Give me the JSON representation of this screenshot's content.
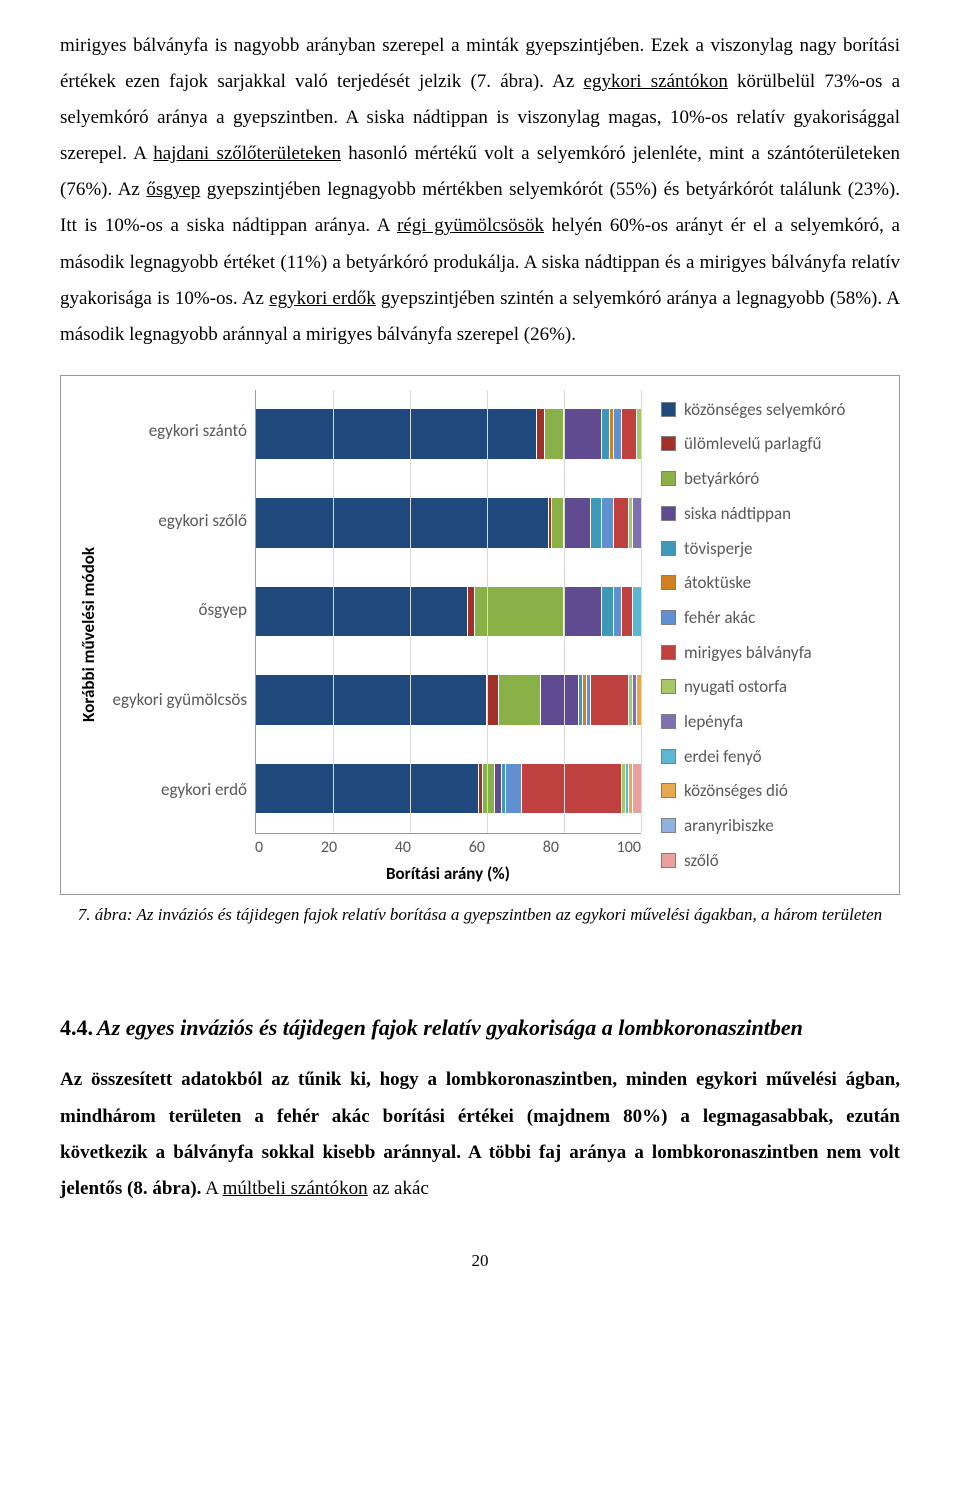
{
  "para": {
    "t1": "mirigyes bálványfa is nagyobb arányban szerepel a minták gyepszintjében. Ezek a viszonylag nagy borítási értékek ezen fajok sarjakkal való terjedését jelzik (7. ábra). Az ",
    "u1": "egykori szántókon",
    "t2": " körülbelül 73%-os a selyemkóró aránya a gyepszintben. A siska nádtippan is viszonylag magas, 10%-os relatív gyakorisággal szerepel. A ",
    "u2": "hajdani szőlőterületeken",
    "t3": " hasonló mértékű volt a selyemkóró jelenléte, mint a szántóterületeken (76%). Az ",
    "u3": "ősgyep",
    "t4": " gyepszintjében legnagyobb mértékben selyemkórót (55%) és betyárkórót találunk (23%). Itt is 10%-os a siska nádtippan aránya. A ",
    "u4": "régi gyümölcsösök",
    "t5": " helyén 60%-os arányt ér el a selyemkóró, a második legnagyobb értéket (11%) a betyárkóró produkálja. A siska nádtippan és a mirigyes bálványfa relatív gyakorisága is 10%-os. Az ",
    "u5": "egykori erdők",
    "t6": " gyepszintjében szintén a selyemkóró aránya a legnagyobb (58%). A második legnagyobb aránnyal a mirigyes bálványfa szerepel (26%)."
  },
  "chart": {
    "type": "stacked-horizontal-bar",
    "y_label": "Korábbi művelési módok",
    "x_label": "Borítási arány (%)",
    "xlim": [
      0,
      100
    ],
    "xticks": [
      "0",
      "20",
      "40",
      "60",
      "80",
      "100"
    ],
    "categories": [
      "egykori szántó",
      "egykori szőlő",
      "ősgyep",
      "egykori gyümölcsös",
      "egykori erdő"
    ],
    "colors": {
      "selyemkoro": "#1f497d",
      "parlagfu": "#a03028",
      "betyarkoro": "#8ab048",
      "nadtippan": "#604a90",
      "tovisperje": "#3e98b8",
      "atoktuske": "#d08020",
      "feherakac": "#6090d0",
      "balvanyfa": "#c04040",
      "ostorfa": "#a8c868",
      "lepenyfa": "#8070b0",
      "erdeifenyo": "#5cb8d0",
      "dio": "#e8a850",
      "aranyrib": "#90b0e0",
      "szolo": "#e8a0a0"
    },
    "series": [
      {
        "key": "selyemkoro",
        "label": "közönséges selyemkóró"
      },
      {
        "key": "parlagfu",
        "label": "ülömlevelű parlagfű"
      },
      {
        "key": "betyarkoro",
        "label": "betyárkóró"
      },
      {
        "key": "nadtippan",
        "label": "siska nádtippan"
      },
      {
        "key": "tovisperje",
        "label": "tövisperje"
      },
      {
        "key": "atoktuske",
        "label": "átoktüske"
      },
      {
        "key": "feherakac",
        "label": "fehér akác"
      },
      {
        "key": "balvanyfa",
        "label": "mirigyes bálványfa"
      },
      {
        "key": "ostorfa",
        "label": "nyugati ostorfa"
      },
      {
        "key": "lepenyfa",
        "label": "lepényfa"
      },
      {
        "key": "erdeifenyo",
        "label": "erdei fenyő"
      },
      {
        "key": "dio",
        "label": "közönséges dió"
      },
      {
        "key": "aranyrib",
        "label": "aranyribiszke"
      },
      {
        "key": "szolo",
        "label": "szőlő"
      }
    ],
    "data": [
      {
        "selyemkoro": 73,
        "parlagfu": 2,
        "betyarkoro": 5,
        "nadtippan": 10,
        "tovisperje": 2,
        "atoktuske": 1,
        "feherakac": 2,
        "balvanyfa": 4,
        "ostorfa": 1
      },
      {
        "selyemkoro": 76,
        "parlagfu": 1,
        "betyarkoro": 3,
        "nadtippan": 7,
        "tovisperje": 3,
        "feherakac": 3,
        "balvanyfa": 4,
        "ostorfa": 1,
        "lepenyfa": 2
      },
      {
        "selyemkoro": 55,
        "parlagfu": 2,
        "betyarkoro": 23,
        "nadtippan": 10,
        "tovisperje": 3,
        "feherakac": 2,
        "balvanyfa": 3,
        "erdeifenyo": 2
      },
      {
        "selyemkoro": 60,
        "parlagfu": 3,
        "betyarkoro": 11,
        "nadtippan": 10,
        "tovisperje": 1,
        "atoktuske": 1,
        "feherakac": 1,
        "balvanyfa": 10,
        "ostorfa": 1,
        "lepenyfa": 1,
        "dio": 1
      },
      {
        "selyemkoro": 58,
        "parlagfu": 1,
        "betyarkoro": 3,
        "nadtippan": 2,
        "tovisperje": 1,
        "feherakac": 4,
        "balvanyfa": 26,
        "ostorfa": 1,
        "szolo": 2,
        "erdeifenyo": 1,
        "dio": 1
      }
    ]
  },
  "caption": "7. ábra: Az inváziós és tájidegen fajok relatív borítása a gyepszintben az egykori művelési ágakban, a három területen",
  "section": {
    "num": "4.4.",
    "title": "Az egyes inváziós és tájidegen fajok relatív gyakorisága a lombkoronaszintben"
  },
  "para2": {
    "b1": "Az összesített adatokból az tűnik ki, hogy a lombkoronaszintben, minden egykori művelési ágban, mindhárom területen a fehér akác borítási értékei (majdnem 80%) a legmagasabbak, ezután következik a bálványfa sokkal kisebb aránnyal. A többi faj aránya a lombkoronaszintben nem volt jelentős (8. ábra).",
    "t1": " A ",
    "u1": "múltbeli szántókon",
    "t2": " az akác"
  },
  "page_number": "20"
}
